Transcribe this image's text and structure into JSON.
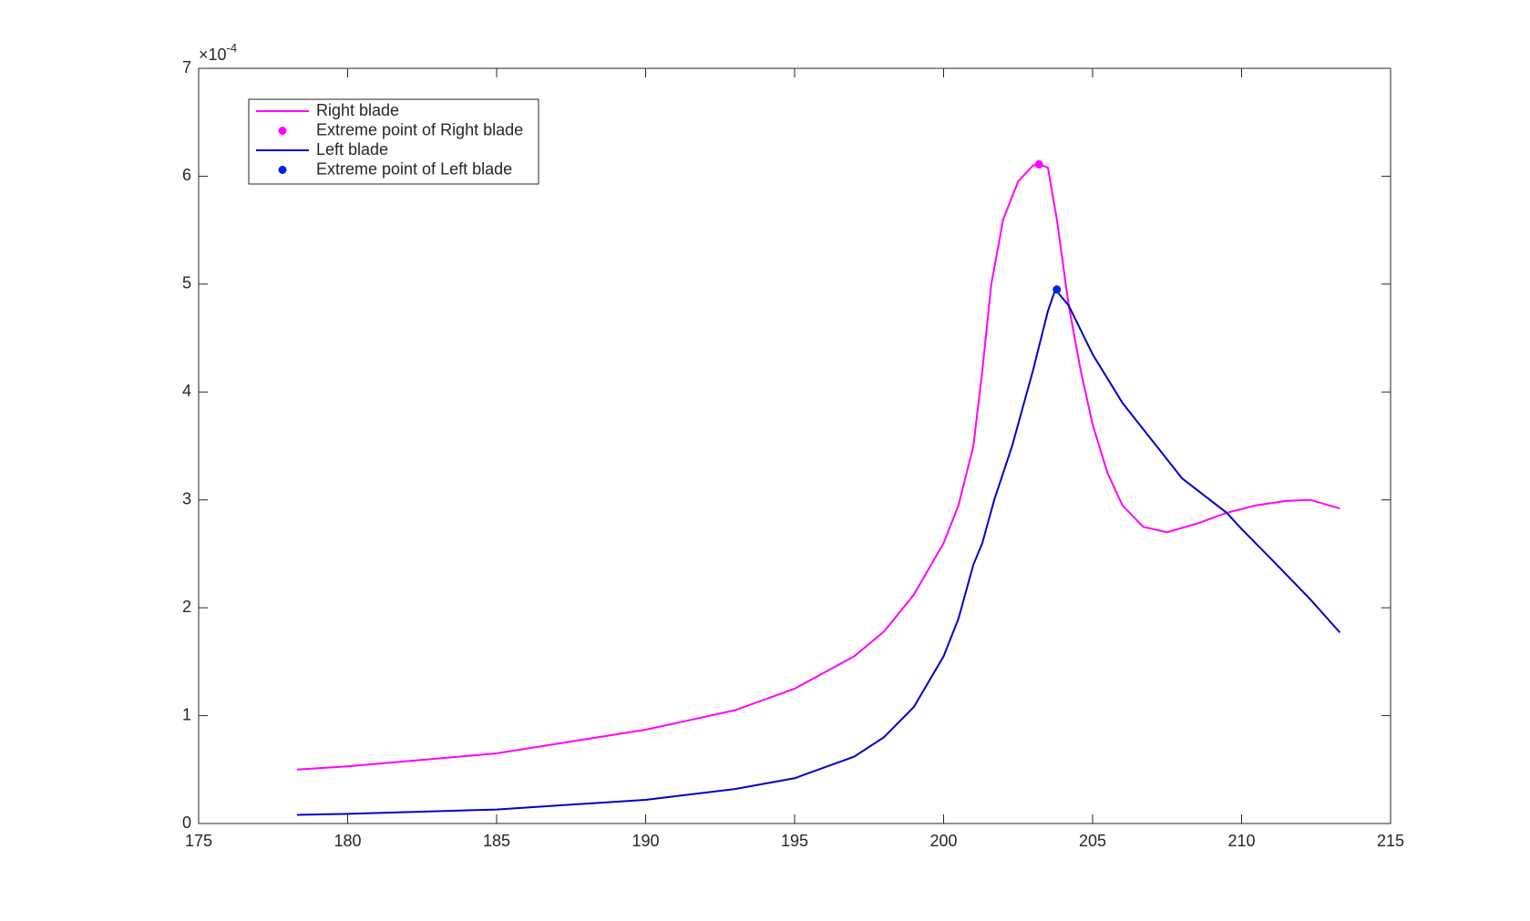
{
  "chart_data": {
    "type": "line",
    "y_multiplier": {
      "base": "×10",
      "exponent": "-4"
    },
    "xlim": [
      175,
      215
    ],
    "xticks": [
      175,
      180,
      185,
      190,
      195,
      200,
      205,
      210,
      215
    ],
    "ylim": [
      0,
      7
    ],
    "yticks": [
      0,
      1,
      2,
      3,
      4,
      5,
      6,
      7
    ],
    "legend": "upper left",
    "series": [
      {
        "name": "Right blade",
        "mode": "line",
        "color": "#ff00ff",
        "x": [
          178.3,
          180,
          185,
          190,
          193,
          195,
          197,
          198,
          199,
          200,
          200.5,
          201,
          201.3,
          201.6,
          202,
          202.5,
          203,
          203.2,
          203.5,
          203.8,
          204.2,
          204.6,
          205,
          205.5,
          206,
          206.7,
          207.5,
          208.5,
          209.5,
          210.5,
          211.5,
          212.3,
          213.3
        ],
        "values": [
          0.5,
          0.53,
          0.65,
          0.87,
          1.05,
          1.25,
          1.55,
          1.78,
          2.12,
          2.6,
          2.95,
          3.5,
          4.2,
          5.0,
          5.6,
          5.95,
          6.1,
          6.11,
          6.08,
          5.6,
          4.8,
          4.2,
          3.7,
          3.25,
          2.95,
          2.75,
          2.7,
          2.78,
          2.88,
          2.95,
          2.99,
          3.0,
          2.92
        ]
      },
      {
        "name": "Extreme point of Right blade",
        "mode": "marker",
        "color": "#ff00ff",
        "x": [
          203.2
        ],
        "values": [
          6.11
        ]
      },
      {
        "name": "Left blade",
        "mode": "line",
        "color": "#0000cc",
        "x": [
          178.3,
          180,
          185,
          190,
          193,
          195,
          197,
          198,
          199,
          200,
          200.5,
          201,
          201.3,
          201.7,
          202.3,
          203,
          203.5,
          203.75,
          204.2,
          205,
          206,
          207,
          208,
          209.5,
          210,
          211,
          212.3,
          213.3
        ],
        "values": [
          0.08,
          0.09,
          0.13,
          0.22,
          0.32,
          0.42,
          0.62,
          0.8,
          1.08,
          1.55,
          1.9,
          2.4,
          2.6,
          3.0,
          3.5,
          4.2,
          4.75,
          4.95,
          4.8,
          4.35,
          3.9,
          3.55,
          3.2,
          2.88,
          2.73,
          2.45,
          2.08,
          1.77
        ]
      },
      {
        "name": "Extreme point of Left blade",
        "mode": "marker",
        "color": "#0022dd",
        "x": [
          203.8
        ],
        "values": [
          4.95
        ]
      }
    ]
  }
}
